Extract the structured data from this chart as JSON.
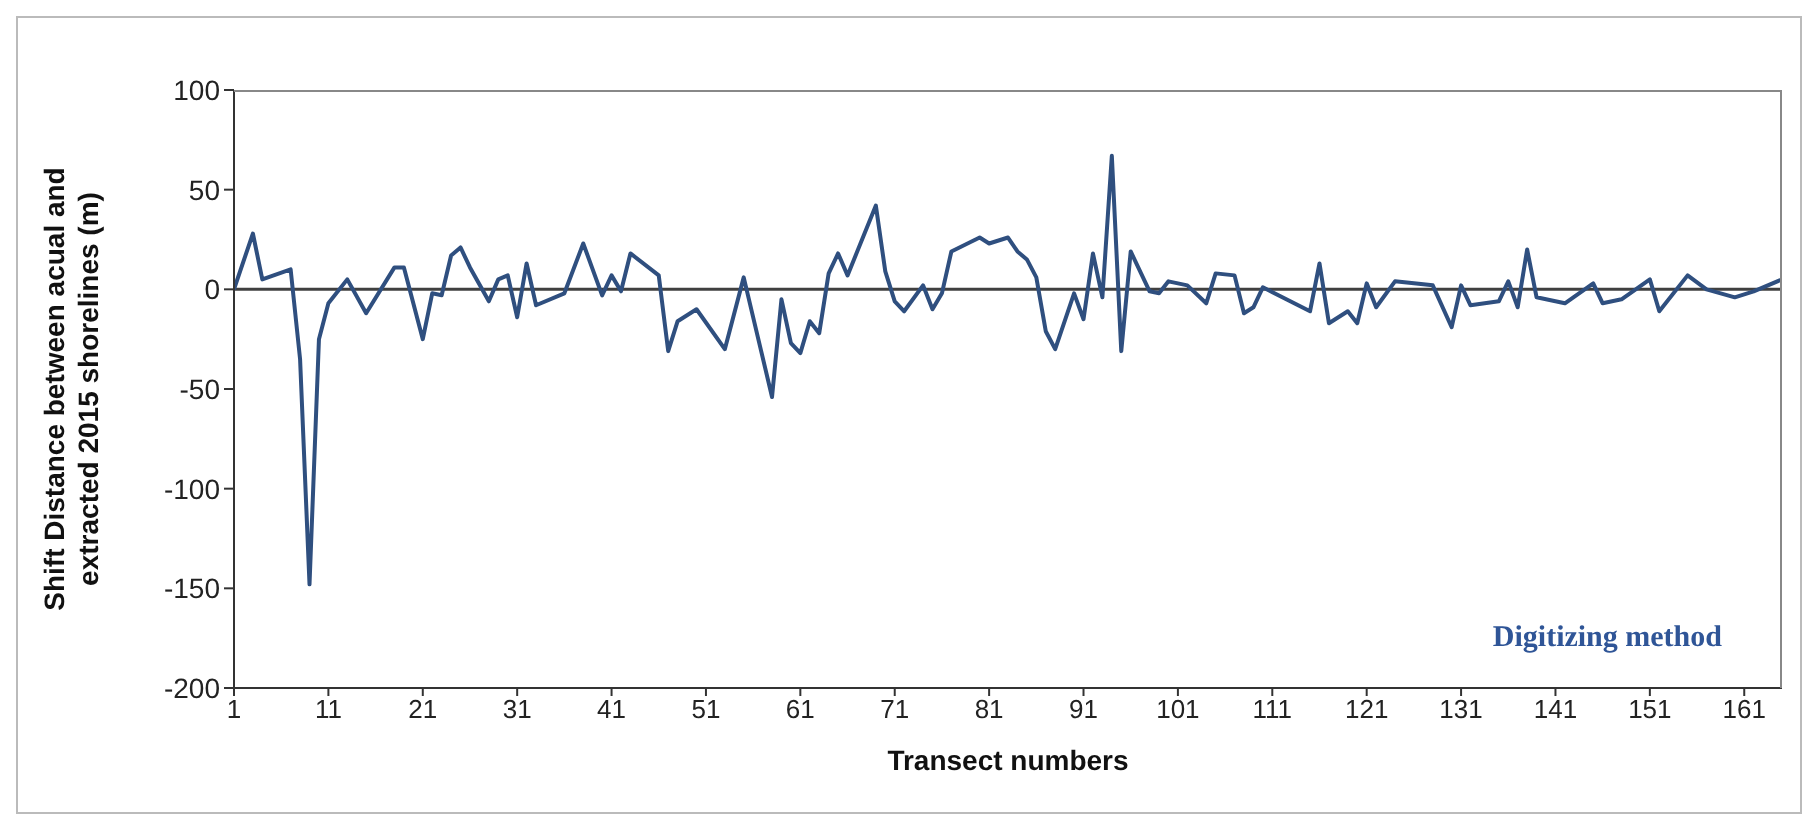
{
  "chart_data": {
    "type": "line",
    "xlabel": "Transect numbers",
    "ylabel": "Shift Distance between acual and extracted 2015 shorelines (m)",
    "annotations": [
      "Digitizing method"
    ],
    "xlim": [
      1,
      165
    ],
    "xticks": [
      1,
      11,
      21,
      31,
      41,
      51,
      61,
      71,
      81,
      91,
      101,
      111,
      121,
      131,
      141,
      151,
      161
    ],
    "ylim": [
      -200,
      100
    ],
    "yticks": [
      -200,
      -150,
      -100,
      -50,
      0,
      50,
      100
    ],
    "grid": false,
    "legend": false,
    "marker": "none",
    "line_style": "solid",
    "ref_lines": [
      {
        "axis": "y",
        "value": 0,
        "color": "#404040"
      }
    ],
    "series": [
      {
        "color": "#2f4f7f",
        "x": [
          1,
          3,
          4,
          7,
          8,
          9,
          10,
          11,
          13,
          15,
          18,
          19,
          21,
          22,
          23,
          24,
          25,
          26,
          28,
          29,
          30,
          31,
          32,
          33,
          36,
          38,
          40,
          41,
          42,
          43,
          46,
          47,
          48,
          50,
          53,
          55,
          58,
          59,
          60,
          61,
          62,
          63,
          64,
          65,
          66,
          69,
          70,
          71,
          72,
          74,
          75,
          76,
          77,
          80,
          81,
          83,
          84,
          85,
          86,
          87,
          88,
          90,
          91,
          92,
          93,
          94,
          95,
          96,
          98,
          99,
          100,
          102,
          104,
          105,
          107,
          108,
          109,
          110,
          115,
          116,
          117,
          119,
          120,
          121,
          122,
          124,
          128,
          130,
          131,
          132,
          135,
          136,
          137,
          138,
          139,
          142,
          145,
          146,
          148,
          151,
          152,
          155,
          157,
          160,
          162,
          165
        ],
        "values": [
          0,
          28,
          5,
          10,
          -35,
          -148,
          -25,
          -7,
          5,
          -12,
          11,
          11,
          -25,
          -2,
          -3,
          17,
          21,
          11,
          -6,
          5,
          7,
          -14,
          13,
          -8,
          -2,
          23,
          -3,
          7,
          -1,
          18,
          7,
          -31,
          -16,
          -10,
          -30,
          6,
          -54,
          -5,
          -27,
          -32,
          -16,
          -22,
          8,
          18,
          7,
          42,
          9,
          -6,
          -11,
          2,
          -10,
          -2,
          19,
          26,
          23,
          26,
          19,
          15,
          6,
          -21,
          -30,
          -2,
          -15,
          18,
          -4,
          67,
          -31,
          19,
          -1,
          -2,
          4,
          2,
          -7,
          8,
          7,
          -12,
          -9,
          1,
          -11,
          13,
          -17,
          -11,
          -17,
          3,
          -9,
          4,
          2,
          -19,
          2,
          -8,
          -6,
          4,
          -9,
          20,
          -4,
          -7,
          3,
          -7,
          -5,
          5,
          -11,
          7,
          0,
          -4,
          -1,
          5
        ]
      }
    ]
  }
}
